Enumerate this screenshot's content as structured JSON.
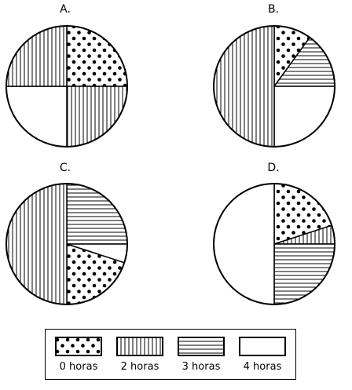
{
  "chart_data": [
    {
      "type": "pie",
      "panel_label": "A.",
      "slices": [
        {
          "category": "0 horas",
          "value": 25
        },
        {
          "category": "2 horas",
          "value": 25
        },
        {
          "category": "4 horas",
          "value": 25
        },
        {
          "category": "2 horas",
          "value": 25
        }
      ]
    },
    {
      "type": "pie",
      "panel_label": "B.",
      "slices": [
        {
          "category": "0 horas",
          "value": 10
        },
        {
          "category": "3 horas",
          "value": 15
        },
        {
          "category": "4 horas",
          "value": 25
        },
        {
          "category": "2 horas",
          "value": 50
        }
      ]
    },
    {
      "type": "pie",
      "panel_label": "C.",
      "slices": [
        {
          "category": "3 horas",
          "value": 25
        },
        {
          "category": "4 horas",
          "value": 5
        },
        {
          "category": "0 horas",
          "value": 20
        },
        {
          "category": "2 horas",
          "value": 50
        }
      ]
    },
    {
      "type": "pie",
      "panel_label": "D.",
      "slices": [
        {
          "category": "0 horas",
          "value": 20
        },
        {
          "category": "2 horas",
          "value": 5
        },
        {
          "category": "3 horas",
          "value": 25
        },
        {
          "category": "4 horas",
          "value": 50
        }
      ]
    }
  ],
  "legend": [
    {
      "category": "0 horas",
      "label": "0 horas",
      "pattern": "dots"
    },
    {
      "category": "2 horas",
      "label": "2 horas",
      "pattern": "vertical-lines"
    },
    {
      "category": "3 horas",
      "label": "3 horas",
      "pattern": "horizontal-lines"
    },
    {
      "category": "4 horas",
      "label": "4 horas",
      "pattern": "blank"
    }
  ]
}
